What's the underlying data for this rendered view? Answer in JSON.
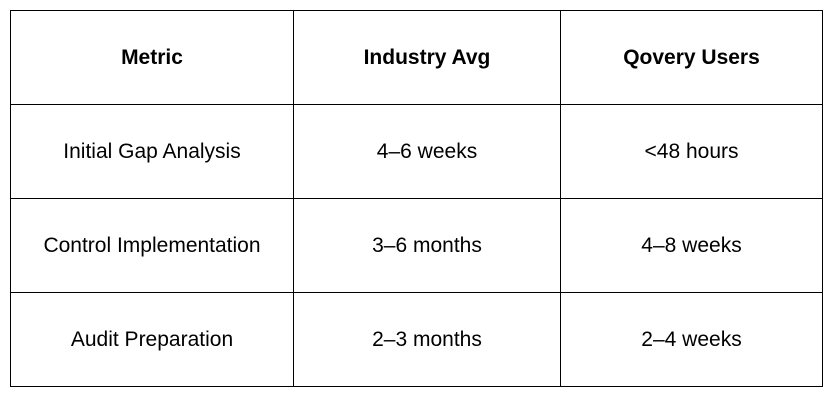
{
  "table": {
    "header": [
      "Metric",
      "Industry Avg",
      "Qovery Users"
    ],
    "rows": [
      [
        "Initial Gap Analysis",
        "4–6 weeks",
        "<48 hours"
      ],
      [
        "Control Implementation",
        "3–6 months",
        "4–8 weeks"
      ],
      [
        "Audit Preparation",
        "2–3 months",
        "2–4 weeks"
      ]
    ]
  }
}
